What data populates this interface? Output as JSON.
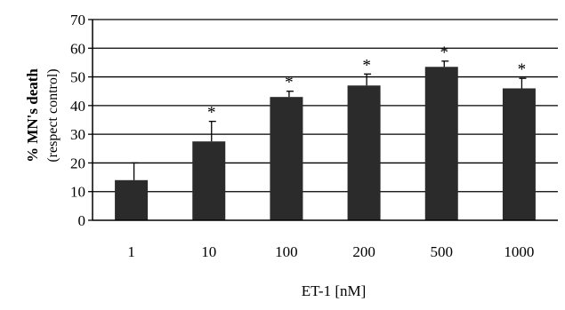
{
  "chart_data": {
    "type": "bar",
    "title": "",
    "xlabel": "ET-1 [nM]",
    "ylabel": "% MN's death",
    "ylabel_sub": "(respect control)",
    "categories": [
      "1",
      "10",
      "100",
      "200",
      "500",
      "1000"
    ],
    "values": [
      14,
      27.5,
      43,
      47,
      53.5,
      46
    ],
    "errors": [
      6,
      7,
      2,
      4,
      2,
      3.5
    ],
    "significance": [
      "",
      "*",
      "*",
      "*",
      "*",
      "*"
    ],
    "ylim": [
      0,
      70
    ],
    "yticks": [
      0,
      10,
      20,
      30,
      40,
      50,
      60,
      70
    ],
    "grid": true,
    "colors": {
      "bar": "#2b2b2b",
      "grid": "#000000"
    }
  }
}
